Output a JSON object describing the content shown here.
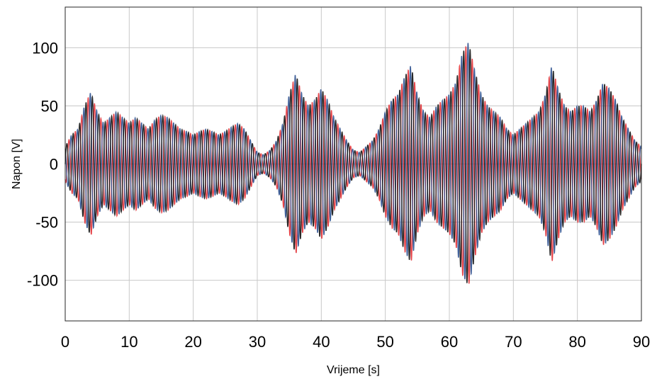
{
  "chart_data": {
    "type": "line",
    "title": "",
    "xlabel": "Vrijeme [s]",
    "ylabel": "Napon [V]",
    "xlim": [
      0,
      90
    ],
    "ylim": [
      -135,
      135
    ],
    "grid": true,
    "x_ticks": [
      0,
      10,
      20,
      30,
      40,
      50,
      60,
      70,
      80,
      90
    ],
    "x_tick_labels": [
      "0",
      "10",
      "20",
      "30",
      "40",
      "50",
      "60",
      "70",
      "80",
      "90"
    ],
    "y_ticks": [
      100,
      50,
      0,
      -50,
      -100
    ],
    "y_tick_labels": [
      "100",
      "50",
      "0",
      "-50",
      "-100"
    ],
    "colors": {
      "phase_a": "#111111",
      "phase_b": "#2b4f8e",
      "phase_c": "#e0242a",
      "grid": "#c8c8c8"
    },
    "envelope": {
      "t": [
        0,
        1,
        2,
        3,
        4,
        5,
        6,
        7,
        8,
        9,
        10,
        11,
        12,
        13,
        14,
        15,
        16,
        17,
        18,
        19,
        20,
        21,
        22,
        23,
        24,
        25,
        26,
        27,
        28,
        29,
        30,
        31,
        32,
        33,
        34,
        35,
        36,
        37,
        38,
        39,
        40,
        41,
        42,
        43,
        44,
        45,
        46,
        47,
        48,
        49,
        50,
        51,
        52,
        53,
        54,
        55,
        56,
        57,
        58,
        59,
        60,
        61,
        62,
        63,
        64,
        65,
        66,
        67,
        68,
        69,
        70,
        71,
        72,
        73,
        74,
        75,
        76,
        77,
        78,
        79,
        80,
        81,
        82,
        83,
        84,
        85,
        86,
        87,
        88,
        89,
        90
      ],
      "amplitude": [
        15,
        25,
        30,
        50,
        62,
        45,
        35,
        40,
        45,
        40,
        35,
        40,
        35,
        30,
        38,
        42,
        40,
        35,
        30,
        28,
        25,
        28,
        30,
        28,
        25,
        28,
        32,
        35,
        30,
        20,
        10,
        8,
        12,
        20,
        35,
        60,
        78,
        60,
        50,
        55,
        65,
        55,
        40,
        30,
        20,
        12,
        10,
        15,
        20,
        30,
        45,
        55,
        60,
        75,
        85,
        60,
        45,
        40,
        50,
        55,
        60,
        70,
        95,
        105,
        80,
        60,
        50,
        45,
        40,
        30,
        25,
        30,
        35,
        40,
        45,
        60,
        85,
        65,
        50,
        45,
        50,
        50,
        45,
        55,
        70,
        65,
        55,
        40,
        30,
        20,
        15
      ]
    },
    "series": [
      {
        "carrier_period_s": 1.0,
        "phase_deg": 0
      },
      {
        "carrier_period_s": 1.0,
        "phase_deg": 120
      },
      {
        "carrier_period_s": 1.0,
        "phase_deg": 240
      }
    ]
  }
}
